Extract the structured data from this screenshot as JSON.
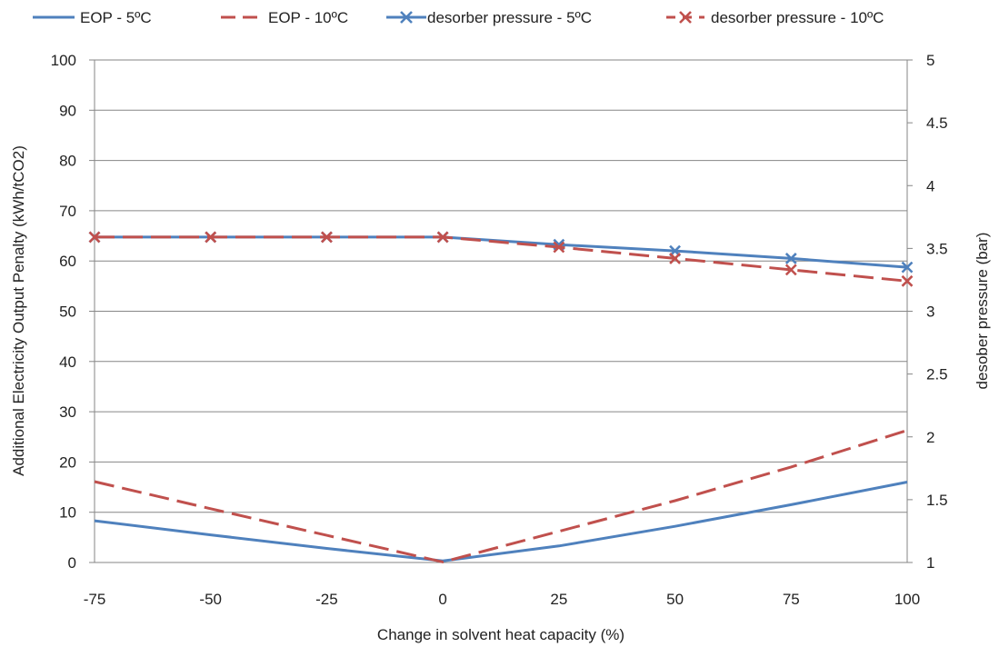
{
  "chart_data": {
    "type": "line",
    "xlabel": "Change in solvent heat capacity (%)",
    "ylabel": "Additional Electricity Output Penalty (kWh/tCO2)",
    "y2label": "desober pressure  (bar)",
    "categories": [
      "-75",
      "-50",
      "-25",
      "0",
      "25",
      "50",
      "75",
      "100"
    ],
    "x": [
      -75,
      -50,
      -25,
      0,
      25,
      50,
      75,
      100
    ],
    "ylim": [
      0,
      100
    ],
    "yticks": [
      0,
      10,
      20,
      30,
      40,
      50,
      60,
      70,
      80,
      90,
      100
    ],
    "y2lim": [
      1,
      5
    ],
    "y2ticks": [
      1,
      1.5,
      2,
      2.5,
      3,
      3.5,
      4,
      4.5,
      5
    ],
    "grid": "horizontal",
    "legend_position": "top",
    "series": [
      {
        "name": "EOP - 5ºC",
        "axis": "left",
        "color": "#4f81bd",
        "dash": "solid",
        "marker": "none",
        "values": [
          8.3,
          5.5,
          2.8,
          0.3,
          3.3,
          7.2,
          11.5,
          16.0
        ]
      },
      {
        "name": "EOP - 10ºC",
        "axis": "left",
        "color": "#c0504d",
        "dash": "dashed",
        "marker": "none",
        "values": [
          16.1,
          10.7,
          5.4,
          0.1,
          6.2,
          12.3,
          19.0,
          26.3
        ]
      },
      {
        "name": "desorber pressure - 5ºC",
        "axis": "right",
        "color": "#4f81bd",
        "dash": "solid",
        "marker": "x",
        "values": [
          3.59,
          3.59,
          3.59,
          3.59,
          3.53,
          3.48,
          3.42,
          3.35
        ]
      },
      {
        "name": "desorber pressure - 10ºC",
        "axis": "right",
        "color": "#c0504d",
        "dash": "dashed",
        "marker": "x",
        "values": [
          3.59,
          3.59,
          3.59,
          3.59,
          3.51,
          3.42,
          3.33,
          3.24
        ]
      }
    ]
  }
}
